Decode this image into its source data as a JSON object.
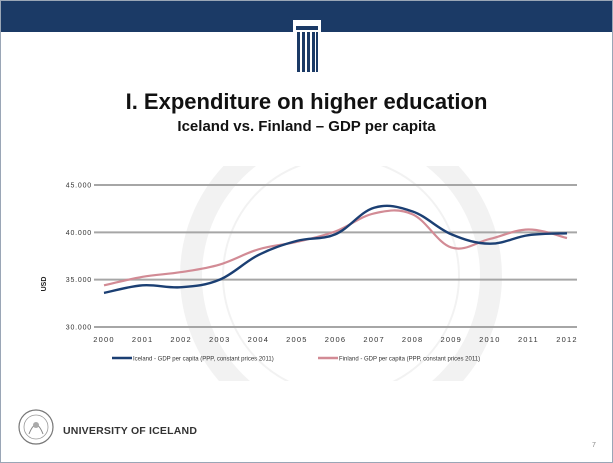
{
  "slide": {
    "title": "I. Expenditure on higher education",
    "subtitle": "Iceland vs. Finland  – GDP per capita",
    "footer_label": "UNIVERSITY OF ICELAND",
    "page_number": "7",
    "colors": {
      "header": "#1b3a66",
      "iceland": "#1b3f73",
      "finland": "#d28b95"
    }
  },
  "chart_data": {
    "type": "line",
    "title": "",
    "xlabel": "",
    "ylabel": "USD",
    "x": [
      "2000",
      "2001",
      "2002",
      "2003",
      "2004",
      "2005",
      "2006",
      "2007",
      "2008",
      "2009",
      "2010",
      "2011",
      "2012"
    ],
    "y_ticks": [
      "30.000",
      "35.000",
      "40.000",
      "45.000"
    ],
    "ylim": [
      30000,
      45000
    ],
    "grid": true,
    "legend_position": "bottom",
    "series": [
      {
        "name": "Iceland - GDP per capita (PPP, constant prices 2011)",
        "color": "#1b3f73",
        "values": [
          33600,
          34400,
          34200,
          35000,
          37600,
          39100,
          39800,
          42600,
          42200,
          39800,
          38800,
          39700,
          39900
        ]
      },
      {
        "name": "Finland - GDP per capita (PPP, constant prices 2011)",
        "color": "#d28b95",
        "values": [
          34400,
          35300,
          35800,
          36600,
          38200,
          39000,
          40100,
          42000,
          41900,
          38400,
          39300,
          40300,
          39400
        ]
      }
    ]
  }
}
